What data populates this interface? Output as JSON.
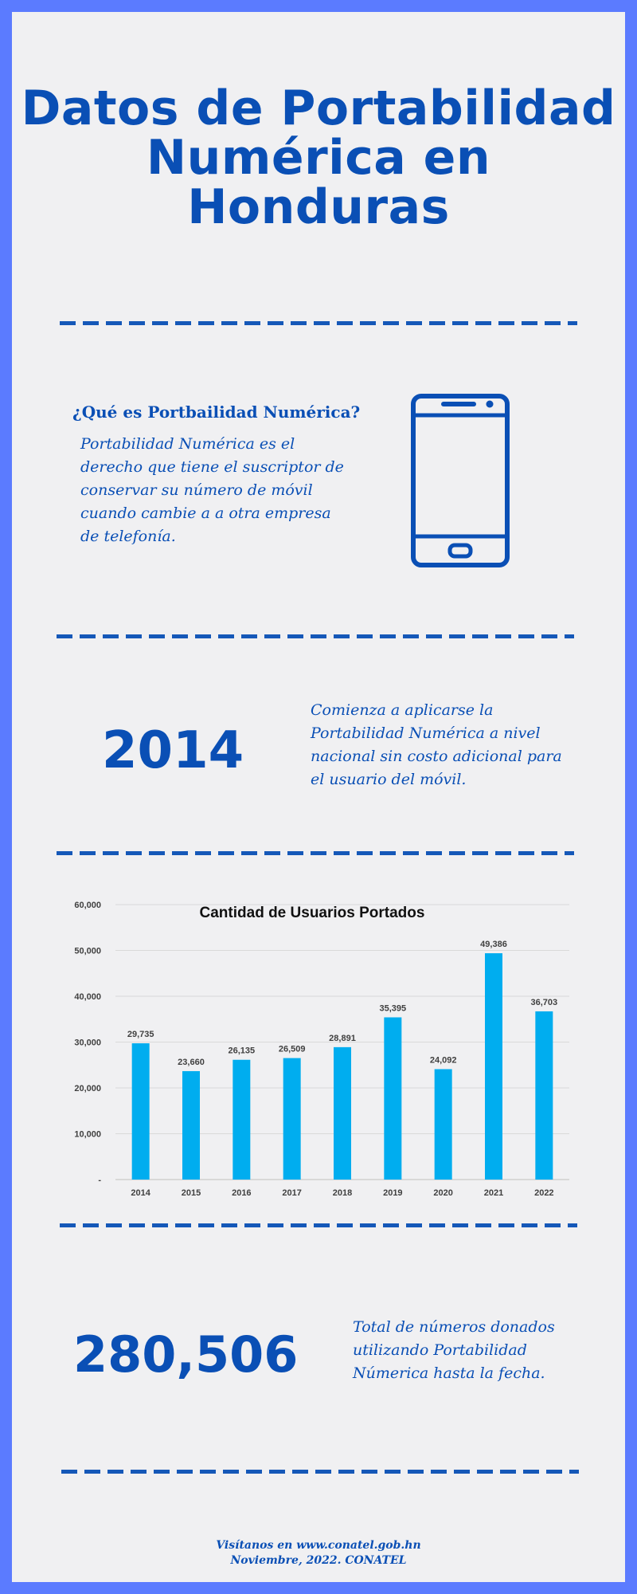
{
  "header": {
    "title_lines": [
      "Datos de Portabilidad",
      "Numérica en",
      "Honduras"
    ]
  },
  "intro": {
    "question": "¿Qué es Portbailidad Numérica?",
    "lines": [
      "Portabilidad Numérica es el",
      "derecho que tiene el suscriptor de",
      "conservar su número de móvil",
      "cuando cambie a a otra empresa",
      "de telefonía."
    ],
    "icon": "smartphone-icon"
  },
  "milestone": {
    "year": "2014",
    "lines": [
      "Comienza a aplicarse la",
      "Portabilidad Numérica a nivel",
      "nacional sin costo adicional para",
      "el usuario del móvil."
    ]
  },
  "chart_data": {
    "type": "bar",
    "title": "Cantidad de Usuarios Portados",
    "categories": [
      "2014",
      "2015",
      "2016",
      "2017",
      "2018",
      "2019",
      "2020",
      "2021",
      "2022"
    ],
    "values": [
      29735,
      23660,
      26135,
      26509,
      28891,
      35395,
      24092,
      49386,
      36703
    ],
    "value_labels": [
      "29,735",
      "23,660",
      "26,135",
      "26,509",
      "28,891",
      "35,395",
      "24,092",
      "49,386",
      "36,703"
    ],
    "y_ticks": [
      {
        "value": 0,
        "label": "-"
      },
      {
        "value": 10000,
        "label": "10,000"
      },
      {
        "value": 20000,
        "label": "20,000"
      },
      {
        "value": 30000,
        "label": "30,000"
      },
      {
        "value": 40000,
        "label": "40,000"
      },
      {
        "value": 50000,
        "label": "50,000"
      },
      {
        "value": 60000,
        "label": "60,000"
      }
    ],
    "ylim": [
      0,
      60000
    ],
    "grid": true,
    "bar_color": "#00adef",
    "xlabel": "",
    "ylabel": ""
  },
  "total": {
    "value": "280,506",
    "lines": [
      "Total de números donados",
      "utilizando Portabilidad",
      "Númerica hasta la fecha."
    ]
  },
  "footer": {
    "line1": "Visítanos en www.conatel.gob.hn",
    "line2": "Noviembre, 2022. CONATEL"
  },
  "colors": {
    "frame": "#5b7bff",
    "accent": "#0a4fb5",
    "bar": "#00adef"
  }
}
